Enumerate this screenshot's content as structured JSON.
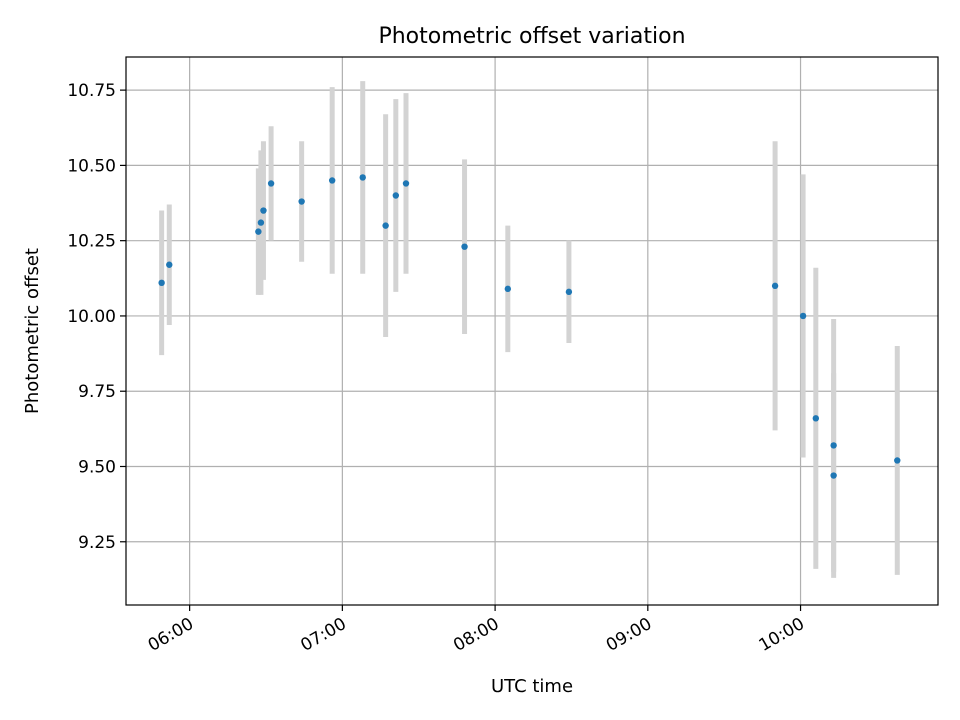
{
  "chart_data": {
    "type": "scatter",
    "title": "Photometric offset variation",
    "xlabel": "UTC time",
    "ylabel": "Photometric offset",
    "x_unit": "hours UTC",
    "xlim": [
      "05:35",
      "10:54"
    ],
    "ylim": [
      9.04,
      10.86
    ],
    "grid": true,
    "xticks": [
      "06:00",
      "07:00",
      "08:00",
      "09:00",
      "10:00"
    ],
    "yticks": [
      "9.25",
      "9.50",
      "9.75",
      "10.00",
      "10.25",
      "10.50",
      "10.75"
    ],
    "colors": {
      "point": "#1f77b4",
      "errorbar": "#d3d3d3",
      "grid": "#b0b0b0"
    },
    "series": [
      {
        "points": [
          {
            "x": "05:49",
            "y": 10.11,
            "err": 0.24
          },
          {
            "x": "05:52",
            "y": 10.17,
            "err": 0.2
          },
          {
            "x": "06:27",
            "y": 10.28,
            "err": 0.21
          },
          {
            "x": "06:28",
            "y": 10.31,
            "err": 0.24
          },
          {
            "x": "06:29",
            "y": 10.35,
            "err": 0.23
          },
          {
            "x": "06:32",
            "y": 10.44,
            "err": 0.19
          },
          {
            "x": "06:44",
            "y": 10.38,
            "err": 0.2
          },
          {
            "x": "06:56",
            "y": 10.45,
            "err": 0.31
          },
          {
            "x": "07:08",
            "y": 10.46,
            "err": 0.32
          },
          {
            "x": "07:17",
            "y": 10.3,
            "err": 0.37
          },
          {
            "x": "07:21",
            "y": 10.4,
            "err": 0.32
          },
          {
            "x": "07:25",
            "y": 10.44,
            "err": 0.3
          },
          {
            "x": "07:48",
            "y": 10.23,
            "err": 0.29
          },
          {
            "x": "08:05",
            "y": 10.09,
            "err": 0.21
          },
          {
            "x": "08:29",
            "y": 10.08,
            "err": 0.17
          },
          {
            "x": "09:50",
            "y": 10.1,
            "err": 0.48
          },
          {
            "x": "10:01",
            "y": 10.0,
            "err": 0.47
          },
          {
            "x": "10:06",
            "y": 9.66,
            "err": 0.5
          },
          {
            "x": "10:13",
            "y": 9.47,
            "err": 0.34
          },
          {
            "x": "10:13",
            "y": 9.57,
            "err": 0.42
          },
          {
            "x": "10:38",
            "y": 9.52,
            "err": 0.38
          }
        ]
      }
    ]
  }
}
